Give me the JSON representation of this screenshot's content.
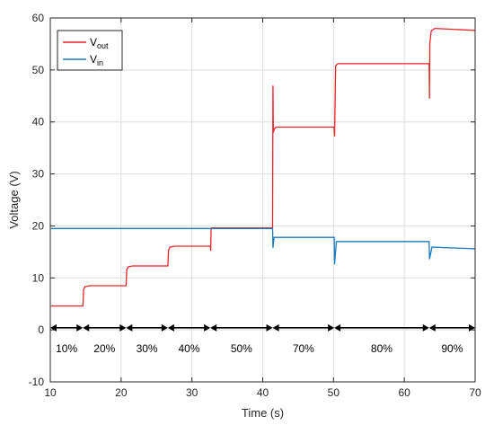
{
  "chart_data": {
    "type": "line",
    "xlabel": "Time (s)",
    "ylabel": "Voltage (V)",
    "xlim": [
      10,
      70
    ],
    "ylim": [
      -10,
      60
    ],
    "xticks": [
      10,
      20,
      30,
      40,
      50,
      60,
      70
    ],
    "yticks": [
      -10,
      0,
      10,
      20,
      30,
      40,
      50,
      60
    ],
    "grid": true,
    "legend_position": "top-left",
    "series": [
      {
        "name": "V",
        "subscript": "out",
        "color": "#e8242a",
        "x": [
          10.1,
          14.6,
          14.7,
          14.9,
          15.5,
          20.7,
          20.8,
          21.0,
          21.6,
          26.6,
          26.7,
          26.9,
          27.5,
          32.6,
          32.65,
          32.7,
          32.75,
          33.2,
          41.4,
          41.45,
          41.5,
          41.65,
          41.9,
          50.1,
          50.15,
          50.3,
          50.6,
          63.5,
          63.55,
          63.6,
          63.8,
          64.3,
          70.0
        ],
        "y": [
          4.6,
          4.6,
          7.8,
          8.3,
          8.5,
          8.5,
          11.6,
          12.1,
          12.3,
          12.3,
          15.4,
          15.9,
          16.1,
          16.1,
          15.2,
          19.4,
          19.6,
          19.6,
          19.6,
          47.0,
          38.0,
          38.7,
          39.0,
          39.0,
          37.2,
          50.8,
          51.2,
          51.2,
          44.5,
          55.0,
          57.5,
          58.0,
          57.6
        ]
      },
      {
        "name": "V",
        "subscript": "in",
        "color": "#1a7bbd",
        "x": [
          10.1,
          41.4,
          41.45,
          41.6,
          50.1,
          50.15,
          50.4,
          63.5,
          63.55,
          63.9,
          70.0
        ],
        "y": [
          19.5,
          19.5,
          15.8,
          17.8,
          17.8,
          12.6,
          17.0,
          17.0,
          13.6,
          15.9,
          15.6
        ]
      }
    ],
    "segments": [
      {
        "label": "10%",
        "from": 10,
        "to": 14.6
      },
      {
        "label": "20%",
        "from": 14.6,
        "to": 20.7
      },
      {
        "label": "30%",
        "from": 20.7,
        "to": 26.6
      },
      {
        "label": "40%",
        "from": 26.6,
        "to": 32.6
      },
      {
        "label": "50%",
        "from": 32.6,
        "to": 41.4
      },
      {
        "label": "70%",
        "from": 41.4,
        "to": 50.1
      },
      {
        "label": "80%",
        "from": 50.1,
        "to": 63.5
      },
      {
        "label": "90%",
        "from": 63.5,
        "to": 70
      }
    ],
    "segment_arrow_y": 0.4
  }
}
